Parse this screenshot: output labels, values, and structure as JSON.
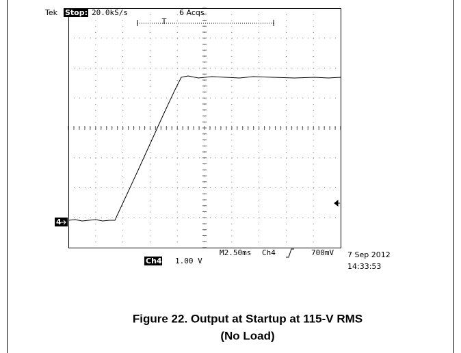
{
  "scope": {
    "brand": "Tek",
    "state": "Stop:",
    "sample_rate": "20.0kS/s",
    "acquisitions": "6 Acqs",
    "trigger_marker": "T",
    "channel_marker": "4",
    "timebase": "M2.50ms",
    "trigger_channel": "Ch4",
    "trigger_level": "700mV",
    "channel": "Ch4",
    "channel_scale": "1.00 V",
    "date": "7 Sep 2012",
    "time": "14:33:53"
  },
  "caption": {
    "line1": "Figure 22. Output at Startup at 115-V RMS",
    "line2": "(No Load)"
  }
}
